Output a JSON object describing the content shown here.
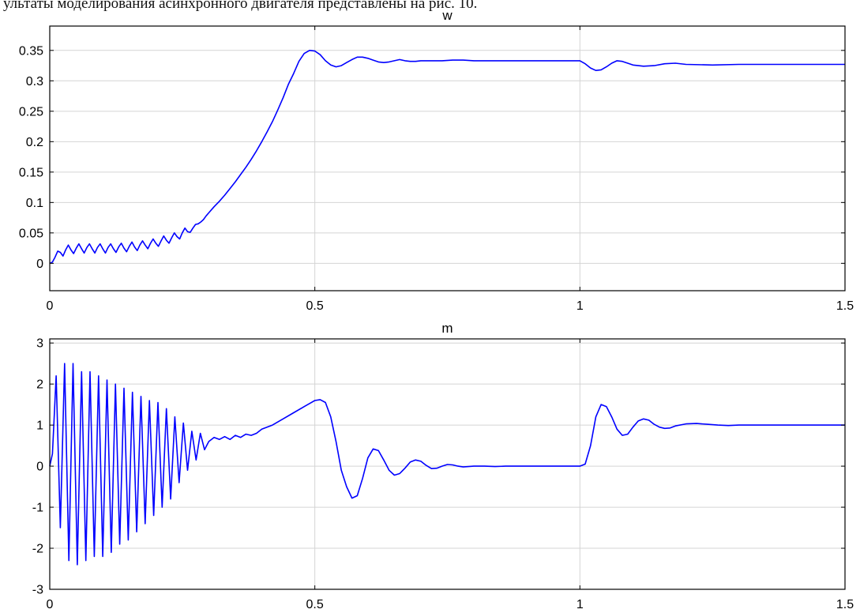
{
  "caption": "ультаты моделирования асинхронного двигателя представлены на рис. 10.",
  "chart_data": [
    {
      "type": "line",
      "title": "w",
      "xlabel": "",
      "ylabel": "",
      "xlim": [
        0,
        1.5
      ],
      "ylim": [
        -0.045,
        0.39
      ],
      "grid": true,
      "xticks": [
        0,
        0.5,
        1,
        1.5
      ],
      "xtick_labels": [
        "0",
        "0.5",
        "1",
        "1.5"
      ],
      "yticks": [
        0,
        0.05,
        0.1,
        0.15,
        0.2,
        0.25,
        0.3,
        0.35
      ],
      "ytick_labels": [
        "0",
        "0.05",
        "0.1",
        "0.15",
        "0.2",
        "0.25",
        "0.3",
        "0.35"
      ],
      "color": "#0000ff",
      "x": [
        0,
        0.005,
        0.01,
        0.015,
        0.02,
        0.025,
        0.03,
        0.035,
        0.04,
        0.045,
        0.05,
        0.055,
        0.06,
        0.065,
        0.07,
        0.075,
        0.08,
        0.085,
        0.09,
        0.095,
        0.1,
        0.105,
        0.11,
        0.115,
        0.12,
        0.125,
        0.13,
        0.135,
        0.14,
        0.145,
        0.15,
        0.155,
        0.16,
        0.165,
        0.17,
        0.175,
        0.18,
        0.185,
        0.19,
        0.195,
        0.2,
        0.205,
        0.21,
        0.215,
        0.22,
        0.225,
        0.23,
        0.235,
        0.24,
        0.245,
        0.25,
        0.255,
        0.26,
        0.265,
        0.27,
        0.275,
        0.28,
        0.285,
        0.29,
        0.295,
        0.3,
        0.31,
        0.32,
        0.33,
        0.34,
        0.35,
        0.36,
        0.37,
        0.38,
        0.39,
        0.4,
        0.41,
        0.42,
        0.43,
        0.44,
        0.45,
        0.46,
        0.47,
        0.48,
        0.49,
        0.5,
        0.51,
        0.52,
        0.53,
        0.54,
        0.55,
        0.56,
        0.57,
        0.58,
        0.59,
        0.6,
        0.61,
        0.62,
        0.63,
        0.64,
        0.65,
        0.66,
        0.67,
        0.68,
        0.69,
        0.7,
        0.72,
        0.74,
        0.76,
        0.78,
        0.8,
        0.85,
        0.9,
        0.95,
        1.0,
        1.01,
        1.02,
        1.03,
        1.04,
        1.05,
        1.06,
        1.07,
        1.08,
        1.09,
        1.1,
        1.12,
        1.14,
        1.16,
        1.18,
        1.2,
        1.25,
        1.3,
        1.35,
        1.4,
        1.45,
        1.5
      ],
      "y": [
        0,
        0.002,
        0.01,
        0.02,
        0.018,
        0.012,
        0.022,
        0.03,
        0.022,
        0.016,
        0.025,
        0.032,
        0.024,
        0.017,
        0.026,
        0.032,
        0.024,
        0.017,
        0.026,
        0.032,
        0.024,
        0.017,
        0.026,
        0.032,
        0.024,
        0.018,
        0.027,
        0.033,
        0.025,
        0.019,
        0.028,
        0.035,
        0.027,
        0.021,
        0.03,
        0.037,
        0.03,
        0.024,
        0.033,
        0.04,
        0.033,
        0.028,
        0.037,
        0.045,
        0.038,
        0.033,
        0.042,
        0.05,
        0.044,
        0.04,
        0.05,
        0.058,
        0.052,
        0.051,
        0.058,
        0.064,
        0.065,
        0.068,
        0.072,
        0.078,
        0.083,
        0.093,
        0.102,
        0.112,
        0.123,
        0.134,
        0.146,
        0.158,
        0.171,
        0.185,
        0.2,
        0.216,
        0.233,
        0.252,
        0.272,
        0.294,
        0.312,
        0.332,
        0.345,
        0.35,
        0.349,
        0.343,
        0.333,
        0.326,
        0.323,
        0.325,
        0.33,
        0.335,
        0.339,
        0.339,
        0.337,
        0.334,
        0.331,
        0.33,
        0.331,
        0.333,
        0.335,
        0.333,
        0.332,
        0.332,
        0.333,
        0.333,
        0.333,
        0.334,
        0.334,
        0.333,
        0.333,
        0.333,
        0.333,
        0.333,
        0.328,
        0.321,
        0.317,
        0.318,
        0.323,
        0.329,
        0.333,
        0.332,
        0.329,
        0.326,
        0.324,
        0.325,
        0.328,
        0.329,
        0.327,
        0.326,
        0.327,
        0.327,
        0.327,
        0.327,
        0.327
      ]
    },
    {
      "type": "line",
      "title": "m",
      "xlabel": "",
      "ylabel": "",
      "xlim": [
        0,
        1.5
      ],
      "ylim": [
        -3,
        3.1
      ],
      "grid": true,
      "xticks": [
        0,
        0.5,
        1,
        1.5
      ],
      "xtick_labels": [
        "0",
        "0.5",
        "1",
        "1.5"
      ],
      "yticks": [
        -3,
        -2,
        -1,
        0,
        1,
        2,
        3
      ],
      "ytick_labels": [
        "-3",
        "-2",
        "-1",
        "0",
        "1",
        "2",
        "3"
      ],
      "color": "#0000ff",
      "x": [
        0,
        0.005,
        0.012,
        0.02,
        0.028,
        0.036,
        0.044,
        0.052,
        0.06,
        0.068,
        0.076,
        0.084,
        0.092,
        0.1,
        0.108,
        0.116,
        0.124,
        0.132,
        0.14,
        0.148,
        0.156,
        0.164,
        0.172,
        0.18,
        0.188,
        0.196,
        0.204,
        0.212,
        0.22,
        0.228,
        0.236,
        0.244,
        0.252,
        0.26,
        0.268,
        0.276,
        0.284,
        0.292,
        0.3,
        0.31,
        0.32,
        0.33,
        0.34,
        0.35,
        0.36,
        0.37,
        0.38,
        0.39,
        0.4,
        0.42,
        0.44,
        0.46,
        0.48,
        0.5,
        0.51,
        0.52,
        0.53,
        0.54,
        0.55,
        0.56,
        0.57,
        0.58,
        0.59,
        0.6,
        0.61,
        0.62,
        0.63,
        0.64,
        0.65,
        0.66,
        0.67,
        0.68,
        0.69,
        0.7,
        0.71,
        0.72,
        0.73,
        0.74,
        0.75,
        0.76,
        0.77,
        0.78,
        0.79,
        0.8,
        0.82,
        0.84,
        0.86,
        0.88,
        0.9,
        0.92,
        0.95,
        0.98,
        1.0,
        1.01,
        1.02,
        1.03,
        1.04,
        1.05,
        1.06,
        1.07,
        1.08,
        1.09,
        1.1,
        1.11,
        1.12,
        1.13,
        1.14,
        1.15,
        1.16,
        1.17,
        1.18,
        1.2,
        1.22,
        1.24,
        1.26,
        1.28,
        1.3,
        1.35,
        1.4,
        1.45,
        1.5
      ],
      "y": [
        0,
        0.3,
        2.2,
        -1.5,
        2.5,
        -2.3,
        2.5,
        -2.4,
        2.3,
        -2.3,
        2.3,
        -2.2,
        2.2,
        -2.2,
        2.1,
        -2.1,
        2,
        -1.9,
        1.9,
        -1.8,
        1.8,
        -1.6,
        1.7,
        -1.4,
        1.6,
        -1.2,
        1.55,
        -1,
        1.4,
        -0.8,
        1.2,
        -0.4,
        1.05,
        -0.1,
        0.85,
        0.15,
        0.8,
        0.4,
        0.6,
        0.7,
        0.65,
        0.72,
        0.65,
        0.75,
        0.7,
        0.78,
        0.75,
        0.8,
        0.9,
        1.0,
        1.15,
        1.3,
        1.45,
        1.6,
        1.62,
        1.55,
        1.2,
        0.6,
        -0.1,
        -0.5,
        -0.78,
        -0.72,
        -0.3,
        0.2,
        0.42,
        0.38,
        0.15,
        -0.1,
        -0.22,
        -0.18,
        -0.05,
        0.1,
        0.15,
        0.12,
        0.02,
        -0.06,
        -0.05,
        0.0,
        0.04,
        0.03,
        0.0,
        -0.02,
        -0.01,
        0.0,
        0.0,
        -0.01,
        0.0,
        0.0,
        0.0,
        0.0,
        0.0,
        0.0,
        0.0,
        0.05,
        0.5,
        1.2,
        1.5,
        1.45,
        1.2,
        0.9,
        0.75,
        0.78,
        0.95,
        1.1,
        1.15,
        1.12,
        1.02,
        0.95,
        0.92,
        0.93,
        0.98,
        1.03,
        1.04,
        1.02,
        1.0,
        0.99,
        1.0,
        1.0,
        1.0,
        1.0,
        1.0
      ]
    }
  ]
}
